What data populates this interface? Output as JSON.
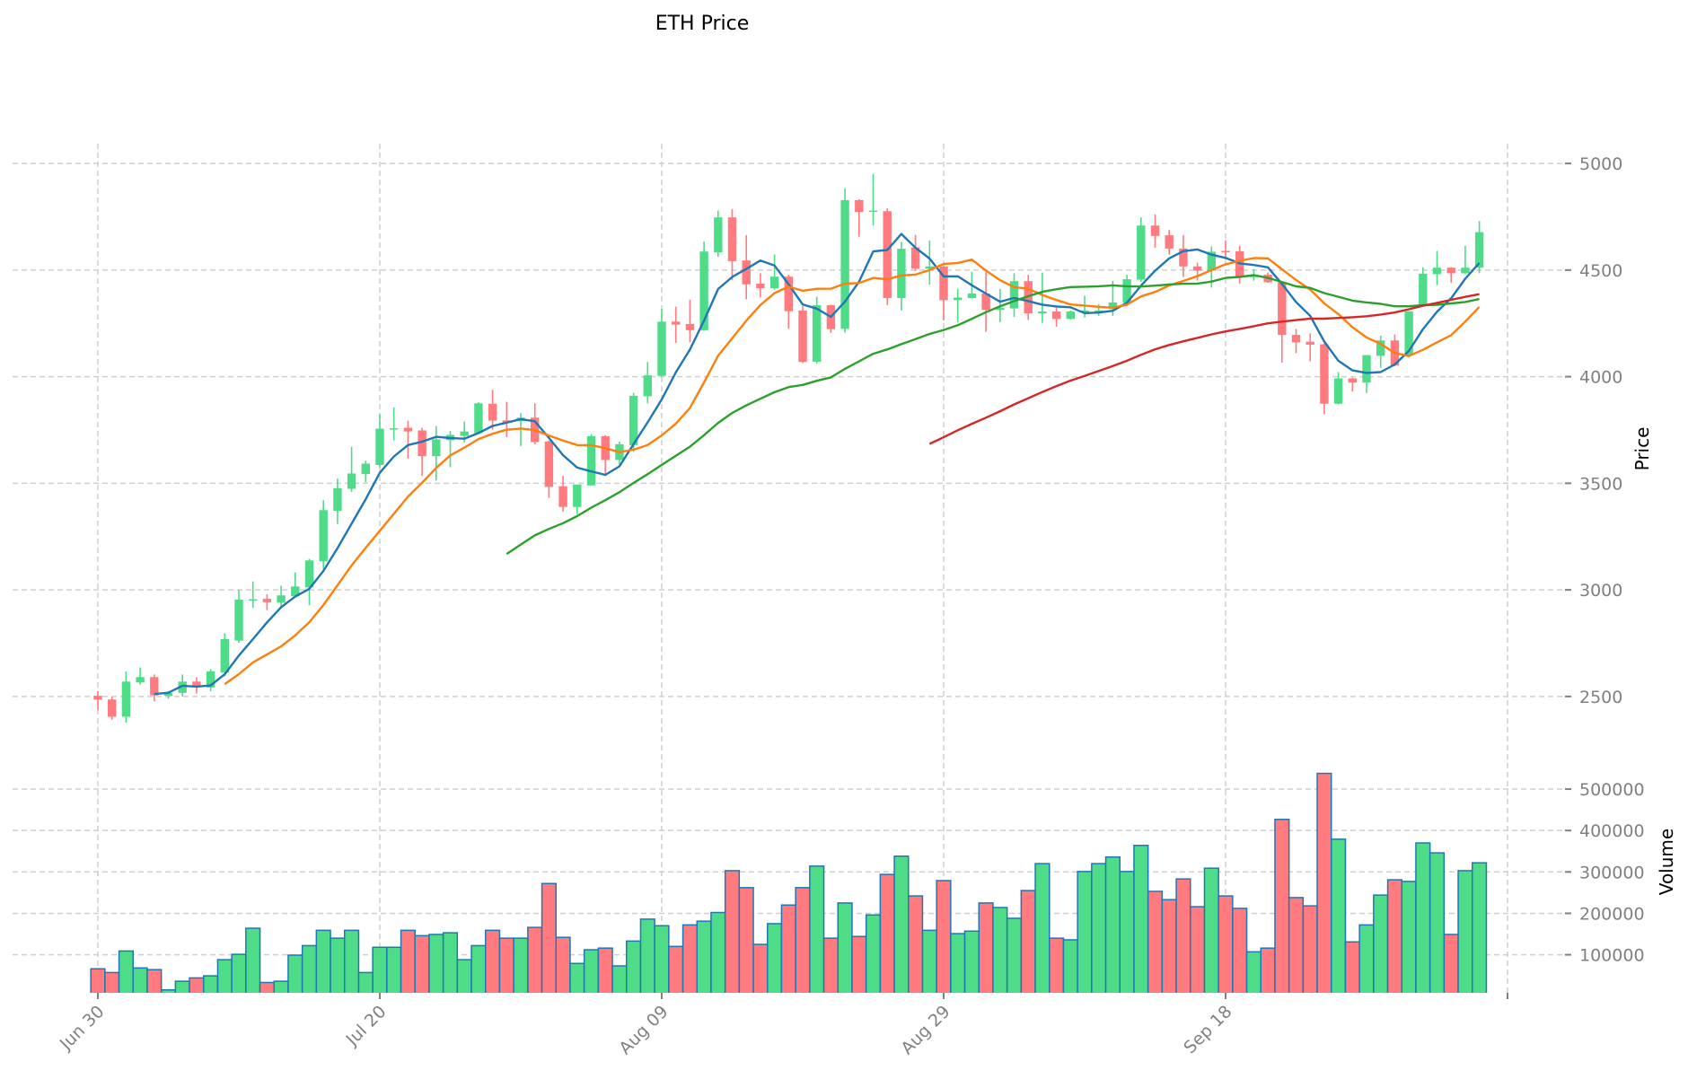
{
  "chart_data": {
    "type": "candlestick",
    "title": "ETH Price",
    "ylabel": "Price",
    "volume_ylabel": "Volume",
    "colors": {
      "up": "#4fdc88",
      "down": "#ff7b7f",
      "volume_edge": "#1f77b4",
      "grid": "#cfcfcf"
    },
    "price_axis": {
      "ylim": [
        2230,
        5093
      ],
      "ticks": [
        2500,
        3000,
        3500,
        4000,
        4500,
        5000
      ]
    },
    "volume_axis": {
      "ylim": [
        8000,
        563000
      ],
      "ticks": [
        100000,
        200000,
        300000,
        400000,
        500000
      ]
    },
    "x_ticks": [
      {
        "index": 0,
        "label": "Jun 30"
      },
      {
        "index": 20,
        "label": "Jul 20"
      },
      {
        "index": 40,
        "label": "Aug 09"
      },
      {
        "index": 60,
        "label": "Aug 29"
      },
      {
        "index": 80,
        "label": "Sep 18"
      },
      {
        "index": 100,
        "label": ""
      }
    ],
    "moving_averages": [
      {
        "period": 5,
        "color": "#1f77b4"
      },
      {
        "period": 10,
        "color": "#ff7f0e"
      },
      {
        "period": 30,
        "color": "#2ca02c"
      },
      {
        "period": 60,
        "color": "#d62728"
      }
    ],
    "ohlc_fields": [
      "open",
      "high",
      "low",
      "close"
    ],
    "ohlc": [
      [
        2503,
        2524,
        2436,
        2485
      ],
      [
        2486,
        2499,
        2391,
        2405
      ],
      [
        2405,
        2618,
        2377,
        2570
      ],
      [
        2566,
        2636,
        2556,
        2591
      ],
      [
        2591,
        2603,
        2478,
        2505
      ],
      [
        2503,
        2524,
        2489,
        2517
      ],
      [
        2517,
        2603,
        2500,
        2570
      ],
      [
        2570,
        2590,
        2514,
        2548
      ],
      [
        2542,
        2629,
        2524,
        2618
      ],
      [
        2612,
        2797,
        2594,
        2769
      ],
      [
        2762,
        3000,
        2752,
        2954
      ],
      [
        2950,
        3040,
        2916,
        2956
      ],
      [
        2958,
        2979,
        2905,
        2942
      ],
      [
        2940,
        3019,
        2922,
        2974
      ],
      [
        2970,
        3082,
        2965,
        3016
      ],
      [
        3012,
        3145,
        2928,
        3138
      ],
      [
        3134,
        3421,
        3098,
        3374
      ],
      [
        3371,
        3522,
        3309,
        3477
      ],
      [
        3474,
        3671,
        3460,
        3546
      ],
      [
        3543,
        3606,
        3505,
        3592
      ],
      [
        3586,
        3823,
        3575,
        3756
      ],
      [
        3755,
        3856,
        3701,
        3758
      ],
      [
        3760,
        3794,
        3616,
        3743
      ],
      [
        3748,
        3760,
        3534,
        3627
      ],
      [
        3627,
        3769,
        3513,
        3706
      ],
      [
        3702,
        3746,
        3575,
        3727
      ],
      [
        3722,
        3790,
        3692,
        3743
      ],
      [
        3735,
        3880,
        3730,
        3875
      ],
      [
        3873,
        3938,
        3752,
        3794
      ],
      [
        3795,
        3882,
        3717,
        3784
      ],
      [
        3791,
        3829,
        3675,
        3808
      ],
      [
        3808,
        3875,
        3683,
        3693
      ],
      [
        3696,
        3700,
        3431,
        3483
      ],
      [
        3486,
        3535,
        3367,
        3389
      ],
      [
        3389,
        3494,
        3354,
        3494
      ],
      [
        3490,
        3731,
        3490,
        3721
      ],
      [
        3721,
        3725,
        3546,
        3609
      ],
      [
        3609,
        3695,
        3588,
        3683
      ],
      [
        3679,
        3924,
        3647,
        3910
      ],
      [
        3908,
        4069,
        3875,
        4006
      ],
      [
        4004,
        4319,
        4000,
        4258
      ],
      [
        4258,
        4328,
        4158,
        4244
      ],
      [
        4247,
        4361,
        4162,
        4218
      ],
      [
        4218,
        4634,
        4215,
        4587
      ],
      [
        4583,
        4779,
        4562,
        4747
      ],
      [
        4747,
        4786,
        4452,
        4542
      ],
      [
        4545,
        4664,
        4363,
        4433
      ],
      [
        4436,
        4485,
        4373,
        4415
      ],
      [
        4415,
        4573,
        4408,
        4469
      ],
      [
        4469,
        4478,
        4225,
        4307
      ],
      [
        4310,
        4331,
        4064,
        4069
      ],
      [
        4070,
        4375,
        4062,
        4335
      ],
      [
        4335,
        4338,
        4205,
        4223
      ],
      [
        4224,
        4884,
        4206,
        4828
      ],
      [
        4828,
        4832,
        4656,
        4772
      ],
      [
        4775,
        4951,
        4709,
        4779
      ],
      [
        4776,
        4789,
        4336,
        4369
      ],
      [
        4369,
        4632,
        4310,
        4600
      ],
      [
        4606,
        4665,
        4496,
        4506
      ],
      [
        4506,
        4638,
        4432,
        4517
      ],
      [
        4517,
        4520,
        4264,
        4359
      ],
      [
        4359,
        4413,
        4255,
        4371
      ],
      [
        4369,
        4492,
        4366,
        4390
      ],
      [
        4390,
        4492,
        4210,
        4313
      ],
      [
        4313,
        4411,
        4255,
        4324
      ],
      [
        4320,
        4485,
        4280,
        4448
      ],
      [
        4448,
        4478,
        4266,
        4297
      ],
      [
        4297,
        4488,
        4252,
        4306
      ],
      [
        4306,
        4324,
        4234,
        4271
      ],
      [
        4271,
        4310,
        4268,
        4306
      ],
      [
        4306,
        4380,
        4278,
        4310
      ],
      [
        4303,
        4340,
        4285,
        4311
      ],
      [
        4317,
        4450,
        4285,
        4348
      ],
      [
        4346,
        4478,
        4330,
        4457
      ],
      [
        4455,
        4747,
        4445,
        4709
      ],
      [
        4709,
        4761,
        4604,
        4660
      ],
      [
        4663,
        4688,
        4572,
        4601
      ],
      [
        4601,
        4664,
        4468,
        4517
      ],
      [
        4517,
        4534,
        4451,
        4497
      ],
      [
        4497,
        4611,
        4418,
        4586
      ],
      [
        4590,
        4640,
        4549,
        4585
      ],
      [
        4588,
        4615,
        4436,
        4472
      ],
      [
        4467,
        4504,
        4450,
        4478
      ],
      [
        4478,
        4488,
        4440,
        4443
      ],
      [
        4443,
        4446,
        4066,
        4196
      ],
      [
        4196,
        4224,
        4110,
        4161
      ],
      [
        4164,
        4203,
        4072,
        4150
      ],
      [
        4152,
        4155,
        3824,
        3873
      ],
      [
        3873,
        4021,
        3870,
        3992
      ],
      [
        3992,
        3995,
        3930,
        3972
      ],
      [
        3972,
        4101,
        3923,
        4101
      ],
      [
        4098,
        4192,
        4041,
        4170
      ],
      [
        4170,
        4198,
        4049,
        4052
      ],
      [
        4101,
        4307,
        4090,
        4307
      ],
      [
        4334,
        4513,
        4330,
        4483
      ],
      [
        4481,
        4590,
        4429,
        4511
      ],
      [
        4511,
        4514,
        4441,
        4485
      ],
      [
        4485,
        4614,
        4482,
        4511
      ],
      [
        4511,
        4730,
        4485,
        4678
      ]
    ],
    "volume": [
      66000,
      57000,
      109000,
      68000,
      64000,
      15000,
      36000,
      44000,
      49000,
      88000,
      101000,
      164000,
      33000,
      36000,
      99000,
      122000,
      159000,
      140000,
      159000,
      57000,
      118000,
      118000,
      159000,
      146000,
      149000,
      153000,
      88000,
      122000,
      159000,
      140000,
      140000,
      166000,
      272000,
      142000,
      79000,
      112000,
      116000,
      73000,
      133000,
      186000,
      170000,
      120000,
      172000,
      181000,
      202000,
      303000,
      262000,
      125000,
      175000,
      220000,
      262000,
      314000,
      140000,
      225000,
      144000,
      196000,
      294000,
      338000,
      242000,
      159000,
      279000,
      151000,
      157000,
      225000,
      214000,
      188000,
      255000,
      320000,
      140000,
      136000,
      301000,
      320000,
      336000,
      301000,
      364000,
      253000,
      233000,
      283000,
      216000,
      309000,
      242000,
      212000,
      107000,
      116000,
      427000,
      238000,
      218000,
      538000,
      379000,
      131000,
      172000,
      244000,
      281000,
      277000,
      370000,
      346000,
      149000,
      303000,
      322000
    ]
  }
}
